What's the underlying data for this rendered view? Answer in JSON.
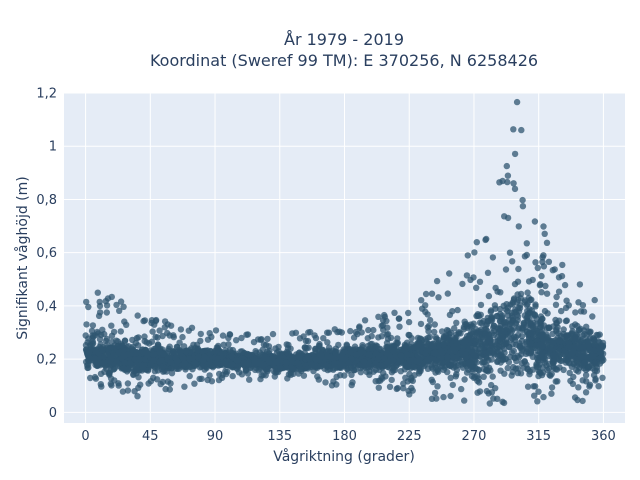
{
  "chart_data": {
    "type": "scatter",
    "title_lines": [
      "År 1979 - 2019",
      "Koordinat (Sweref 99 TM): E 370256, N 6258426"
    ],
    "xlabel": "Vågriktning (grader)",
    "ylabel": "Signifikant våghöjd (m)",
    "xlim": [
      -15,
      375
    ],
    "ylim": [
      -0.04,
      1.2
    ],
    "x_ticks": [
      0,
      45,
      90,
      135,
      180,
      225,
      270,
      315,
      360
    ],
    "x_tick_labels": [
      "0",
      "45",
      "90",
      "135",
      "180",
      "225",
      "270",
      "315",
      "360"
    ],
    "y_ticks": [
      0,
      0.2,
      0.4,
      0.6,
      0.8,
      1,
      1.2
    ],
    "y_tick_labels": [
      "0",
      "0,2",
      "0,4",
      "0,6",
      "0,8",
      "1",
      "1,2"
    ],
    "grid": true,
    "colors": {
      "marker": "#2f5670",
      "plot_bg": "#e5ecf6",
      "grid": "#ffffff"
    },
    "series": [
      {
        "envelope": {
          "x": [
            0,
            15,
            30,
            45,
            60,
            75,
            90,
            105,
            120,
            135,
            150,
            165,
            180,
            195,
            210,
            225,
            240,
            255,
            270,
            280,
            290,
            295,
            300,
            305,
            310,
            315,
            320,
            330,
            340,
            350,
            360
          ],
          "y_min": [
            0.1,
            0.08,
            0.06,
            0.06,
            0.08,
            0.1,
            0.12,
            0.12,
            0.12,
            0.12,
            0.12,
            0.1,
            0.1,
            0.08,
            0.08,
            0.06,
            0.05,
            0.04,
            0.03,
            0.03,
            0.03,
            0.02,
            0.02,
            0.02,
            0.02,
            0.03,
            0.03,
            0.03,
            0.03,
            0.04,
            0.06
          ],
          "y_max": [
            0.47,
            0.46,
            0.4,
            0.36,
            0.34,
            0.33,
            0.31,
            0.3,
            0.29,
            0.3,
            0.3,
            0.31,
            0.32,
            0.35,
            0.37,
            0.41,
            0.47,
            0.55,
            0.63,
            0.75,
            0.9,
            1.0,
            1.17,
            1.1,
            1.0,
            0.82,
            0.7,
            0.58,
            0.5,
            0.45,
            0.4
          ]
        },
        "median": {
          "x": [
            0,
            45,
            90,
            135,
            180,
            225,
            270,
            300,
            315,
            360
          ],
          "y": [
            0.22,
            0.2,
            0.2,
            0.19,
            0.2,
            0.21,
            0.24,
            0.3,
            0.26,
            0.22
          ]
        }
      }
    ]
  }
}
